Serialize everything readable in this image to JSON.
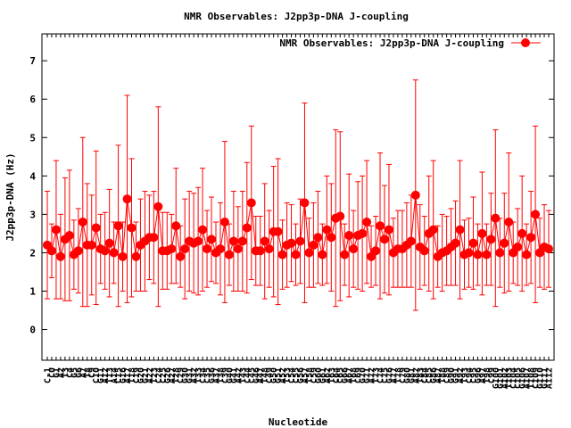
{
  "chart_data": {
    "type": "line",
    "title": "NMR Observables: J2pp3p-DNA J-coupling",
    "xlabel": "Nucleotide",
    "ylabel": "J2pp3p-DNA (Hz)",
    "ylim": [
      -0.8,
      7.7
    ],
    "yticks": [
      0,
      1,
      2,
      3,
      4,
      5,
      6,
      7
    ],
    "grid": false,
    "legend_position": "top-right",
    "series_color": "#ff0000",
    "series": [
      {
        "name": "NMR Observables: J2pp3p-DNA J-coupling",
        "x": [
          -1,
          0,
          1,
          2,
          3,
          4,
          5,
          6,
          7,
          8,
          9,
          10,
          11,
          12,
          13,
          14,
          15,
          16,
          17,
          18,
          19,
          20,
          21,
          22,
          23,
          24,
          25,
          26,
          27,
          28,
          29,
          30,
          31,
          32,
          33,
          34,
          35,
          36,
          37,
          38,
          39,
          40,
          41,
          42,
          43,
          44,
          45,
          46,
          47,
          48,
          49,
          50,
          51,
          52,
          53,
          54,
          55,
          56,
          57,
          58,
          59,
          60,
          61,
          62,
          63,
          64,
          65,
          66,
          67,
          68,
          69,
          70,
          71,
          72,
          73,
          74,
          75,
          76,
          77,
          78,
          79,
          80,
          81,
          82,
          83,
          84,
          85,
          86,
          87,
          88,
          89,
          90,
          91,
          92,
          93,
          94,
          95,
          96,
          97,
          98,
          99,
          100,
          101,
          102,
          103,
          104,
          105,
          106,
          107,
          108,
          109,
          110,
          111,
          112
        ],
        "values": [
          2.2,
          2.05,
          2.6,
          1.9,
          2.35,
          2.45,
          1.95,
          2.05,
          2.8,
          2.2,
          2.2,
          2.65,
          2.1,
          2.05,
          2.25,
          2.0,
          2.7,
          1.9,
          3.4,
          2.65,
          1.9,
          2.2,
          2.3,
          2.4,
          2.4,
          3.2,
          2.05,
          2.05,
          2.1,
          2.7,
          1.9,
          2.1,
          2.3,
          2.25,
          2.3,
          2.6,
          2.1,
          2.35,
          2.0,
          2.1,
          2.8,
          1.95,
          2.3,
          2.1,
          2.3,
          2.65,
          3.3,
          2.05,
          2.05,
          2.3,
          2.1,
          2.55,
          2.55,
          1.95,
          2.2,
          2.25,
          1.95,
          2.3,
          3.3,
          2.0,
          2.2,
          2.4,
          1.95,
          2.6,
          2.4,
          2.9,
          2.95,
          1.95,
          2.45,
          2.1,
          2.45,
          2.5,
          2.8,
          1.9,
          2.05,
          2.7,
          2.35,
          2.6,
          2.0,
          2.1,
          2.1,
          2.2,
          2.3,
          3.5,
          2.15,
          2.05,
          2.5,
          2.6,
          1.9,
          2.0,
          2.05,
          2.15,
          2.25,
          2.6,
          1.95,
          2.0,
          2.25,
          1.95,
          2.5,
          1.95,
          2.35,
          2.9,
          2.0,
          2.25,
          2.8,
          2.0,
          2.15,
          2.5,
          1.95,
          2.4,
          3.0,
          2.0,
          2.15,
          2.1
        ],
        "errors": [
          1.4,
          0.7,
          1.8,
          1.1,
          1.6,
          1.7,
          0.9,
          1.1,
          2.2,
          1.6,
          1.3,
          2.0,
          0.9,
          1.0,
          1.4,
          0.8,
          2.1,
          0.9,
          2.7,
          1.8,
          0.9,
          1.2,
          1.3,
          1.1,
          1.2,
          2.6,
          1.0,
          1.0,
          0.9,
          1.5,
          0.8,
          1.3,
          1.3,
          1.3,
          1.4,
          1.6,
          1.0,
          1.1,
          0.8,
          1.2,
          2.1,
          0.8,
          1.3,
          1.1,
          1.3,
          1.7,
          2.0,
          0.9,
          0.9,
          1.5,
          1.0,
          1.7,
          1.9,
          0.9,
          1.1,
          1.0,
          0.8,
          1.1,
          2.6,
          0.9,
          1.1,
          1.2,
          0.8,
          1.4,
          1.4,
          2.3,
          2.2,
          0.8,
          1.6,
          1.0,
          1.4,
          1.5,
          1.6,
          0.8,
          0.9,
          1.9,
          1.4,
          1.7,
          0.9,
          1.0,
          1.0,
          1.1,
          1.2,
          3.0,
          1.1,
          0.9,
          1.5,
          1.8,
          0.8,
          1.0,
          0.9,
          1.0,
          1.1,
          1.8,
          0.9,
          0.9,
          1.2,
          0.8,
          1.6,
          0.8,
          1.2,
          2.3,
          0.9,
          1.3,
          1.8,
          0.8,
          1.0,
          1.5,
          0.8,
          1.2,
          2.3,
          0.9,
          1.1,
          1.0
        ]
      }
    ],
    "xtick_labels": [
      "C-1",
      "C0",
      "G1",
      "A2",
      "T3",
      "C4",
      "G5",
      "G6",
      "A7",
      "T8",
      "C9",
      "C10",
      "G11",
      "A12",
      "T13",
      "A14",
      "C15",
      "G16",
      "A17",
      "T18",
      "C19",
      "G20",
      "G21",
      "A22",
      "T23",
      "C24",
      "C25",
      "G26",
      "A27",
      "T28",
      "C29",
      "G30",
      "G31",
      "A32",
      "T33",
      "C34",
      "C35",
      "G36",
      "A37",
      "T38",
      "C39",
      "G40",
      "G41",
      "A42",
      "T43",
      "C44",
      "C45",
      "G46",
      "A47",
      "T48",
      "C49",
      "G50",
      "G51",
      "A52",
      "T53",
      "C54",
      "C55",
      "G56",
      "A57",
      "T58",
      "C59",
      "G60",
      "G61",
      "A62",
      "T63",
      "C64",
      "C65",
      "G66",
      "A67",
      "T68",
      "C69",
      "G70",
      "G71",
      "A72",
      "T73",
      "C74",
      "C75",
      "G76",
      "A77",
      "T78",
      "C79",
      "G80",
      "G81",
      "A82",
      "T83",
      "C84",
      "C85",
      "G86",
      "A87",
      "T88",
      "C89",
      "G90",
      "G91",
      "A92",
      "T93",
      "C94",
      "C95",
      "G96",
      "A97",
      "T98",
      "C99",
      "G100",
      "G101",
      "A102",
      "T103",
      "C104",
      "C105",
      "G106",
      "A107",
      "T108",
      "C109",
      "G110",
      "G111",
      "A112"
    ]
  }
}
